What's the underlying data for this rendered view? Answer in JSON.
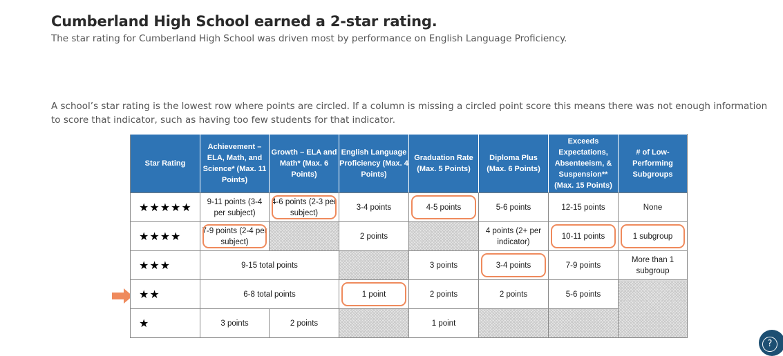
{
  "header": {
    "title": "Cumberland High School earned a 2-star rating.",
    "subtitle": "The star rating for Cumberland High School was driven most by performance on English Language Proficiency."
  },
  "explanation": "A school’s star rating is the lowest row where points are circled. If a column is missing a circled point score this means there was not enough information to score that indicator, such as having too few students for that indicator.",
  "table": {
    "headers": {
      "star": "Star Rating",
      "ach": "Achievement – ELA, Math, and Science* (Max. 11 Points)",
      "growth": "Growth – ELA and Math* (Max. 6 Points)",
      "elp": "English Language Proficiency (Max. 4 Points)",
      "grad": "Graduation Rate (Max. 5 Points)",
      "dip": "Diploma Plus (Max. 6 Points)",
      "exc": "Exceeds Expectations, Absenteeism, & Suspension** (Max. 15 Points)",
      "low": "# of Low-Performing Subgroups"
    },
    "rows": {
      "r5": {
        "stars": "★★★★★",
        "ach": "9-11 points (3-4 per subject)",
        "growth": "4-6 points (2-3 per subject)",
        "elp": "3-4 points",
        "grad": "4-5 points",
        "dip": "5-6 points",
        "exc": "12-15 points",
        "low": "None"
      },
      "r4": {
        "stars": "★★★★",
        "ach": "7-9 points (2-4 per subject)",
        "elp": "2 points",
        "dip": "4 points (2+ per indicator)",
        "exc": "10-11 points",
        "low": "1 subgroup"
      },
      "r3": {
        "stars": "★★★",
        "achgrowth": "9-15 total points",
        "grad": "3 points",
        "dip": "3-4 points",
        "exc": "7-9 points",
        "low": "More than 1 subgroup"
      },
      "r2": {
        "stars": "★★",
        "achgrowth": "6-8 total points",
        "elp": "1 point",
        "grad": "2 points",
        "dip": "2 points",
        "exc": "5-6 points"
      },
      "r1": {
        "stars": "★",
        "ach": "3 points",
        "growth": "2 points",
        "grad": "1 point"
      }
    }
  },
  "current_rating_indicator": "arrow-right",
  "help_icon": "question-circle-icon",
  "accent_color": "#ef8a5c",
  "header_color": "#2e74b5"
}
